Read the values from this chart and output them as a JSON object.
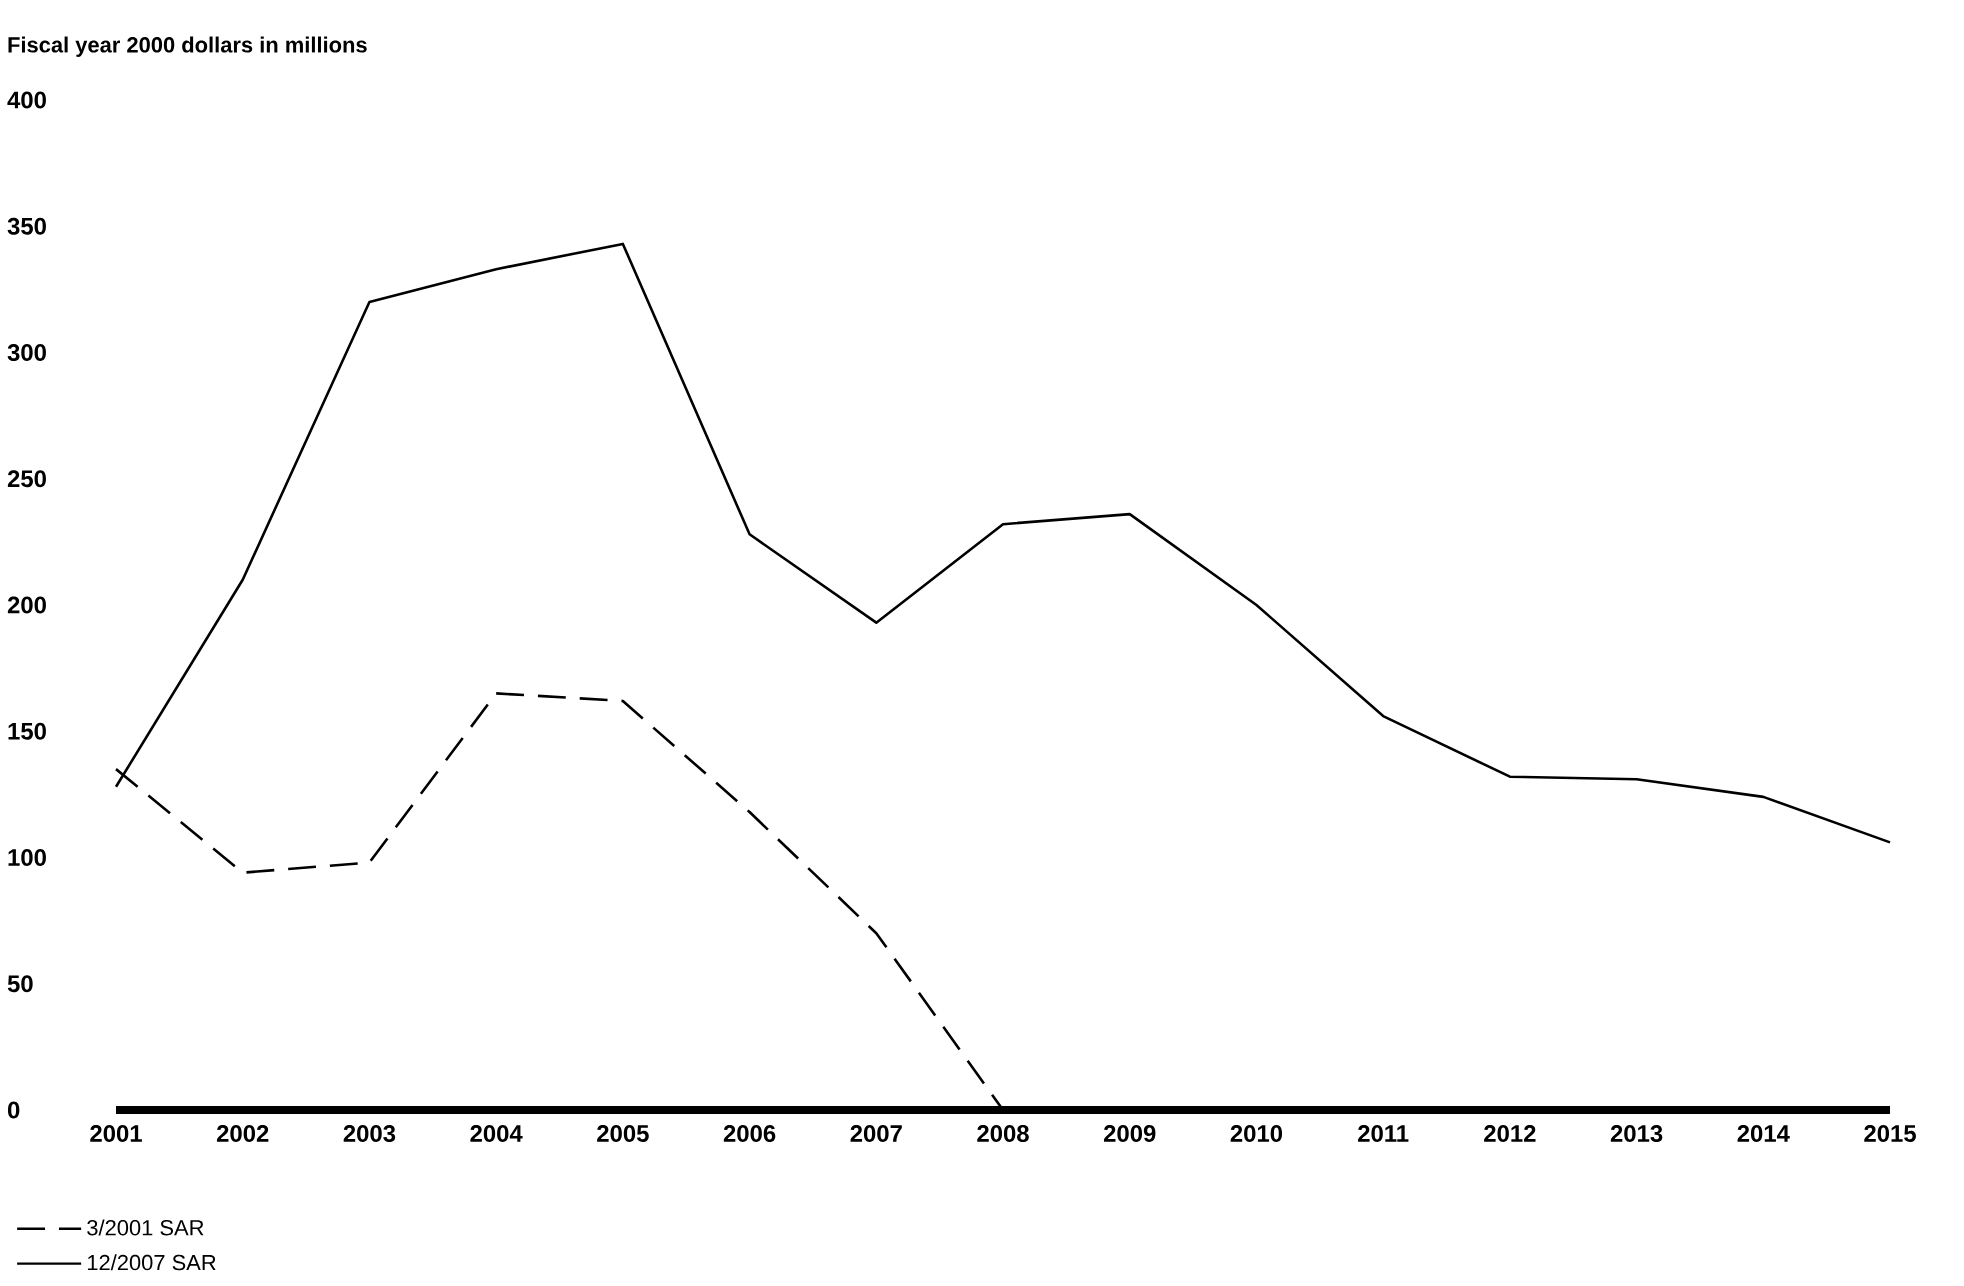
{
  "chart_data": {
    "type": "line",
    "ylabel": "Fiscal year 2000 dollars in millions",
    "x": [
      2001,
      2002,
      2003,
      2004,
      2005,
      2006,
      2007,
      2008,
      2009,
      2010,
      2011,
      2012,
      2013,
      2014,
      2015
    ],
    "xlim": [
      2001,
      2015
    ],
    "xticks": [
      2001,
      2002,
      2003,
      2004,
      2005,
      2006,
      2007,
      2008,
      2009,
      2010,
      2011,
      2012,
      2013,
      2014,
      2015
    ],
    "ylim": [
      0,
      400
    ],
    "yticks": [
      0,
      50,
      100,
      150,
      200,
      250,
      300,
      350,
      400
    ],
    "series": [
      {
        "name": "3/2001 SAR",
        "color": "#000000",
        "line_style": "dashed",
        "x": [
          2001,
          2002,
          2003,
          2004,
          2005,
          2006,
          2007,
          2008
        ],
        "values": [
          135,
          94,
          98,
          165,
          162,
          118,
          70,
          0
        ]
      },
      {
        "name": "12/2007 SAR",
        "color": "#000000",
        "line_style": "solid",
        "values": [
          128,
          210,
          320,
          333,
          343,
          228,
          193,
          232,
          236,
          200,
          156,
          132,
          131,
          124,
          106
        ]
      }
    ],
    "grid": false,
    "legend": "bottom left",
    "marker": "none"
  }
}
